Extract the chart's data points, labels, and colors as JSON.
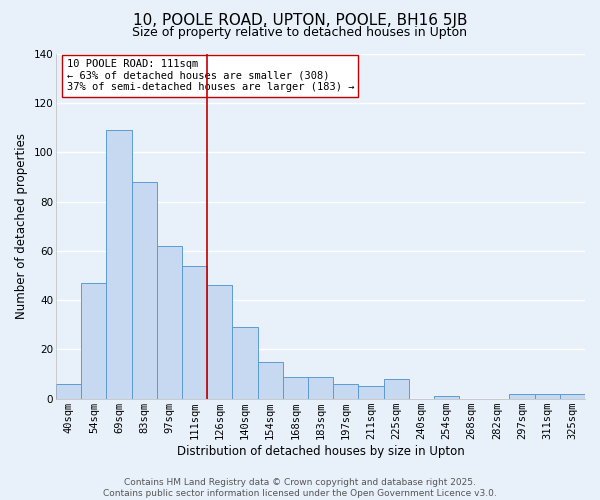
{
  "title": "10, POOLE ROAD, UPTON, POOLE, BH16 5JB",
  "subtitle": "Size of property relative to detached houses in Upton",
  "xlabel": "Distribution of detached houses by size in Upton",
  "ylabel": "Number of detached properties",
  "bar_labels": [
    "40sqm",
    "54sqm",
    "69sqm",
    "83sqm",
    "97sqm",
    "111sqm",
    "126sqm",
    "140sqm",
    "154sqm",
    "168sqm",
    "183sqm",
    "197sqm",
    "211sqm",
    "225sqm",
    "240sqm",
    "254sqm",
    "268sqm",
    "282sqm",
    "297sqm",
    "311sqm",
    "325sqm"
  ],
  "bar_values": [
    6,
    47,
    109,
    88,
    62,
    54,
    46,
    29,
    15,
    9,
    9,
    6,
    5,
    8,
    0,
    1,
    0,
    0,
    2,
    2,
    2
  ],
  "bar_color": "#c6d9f1",
  "bar_edge_color": "#5b9bd5",
  "vline_index": 5,
  "vline_color": "#c00000",
  "ylim": [
    0,
    140
  ],
  "yticks": [
    0,
    20,
    40,
    60,
    80,
    100,
    120,
    140
  ],
  "annotation_title": "10 POOLE ROAD: 111sqm",
  "annotation_line1": "← 63% of detached houses are smaller (308)",
  "annotation_line2": "37% of semi-detached houses are larger (183) →",
  "annotation_box_color": "#ffffff",
  "annotation_box_edge": "#c00000",
  "footer_line1": "Contains HM Land Registry data © Crown copyright and database right 2025.",
  "footer_line2": "Contains public sector information licensed under the Open Government Licence v3.0.",
  "bg_color": "#e8f1fa",
  "plot_bg_color": "#e8f1fa",
  "grid_color": "#ffffff",
  "title_fontsize": 11,
  "subtitle_fontsize": 9,
  "axis_label_fontsize": 8.5,
  "tick_fontsize": 7.5,
  "annotation_fontsize": 7.5,
  "footer_fontsize": 6.5
}
